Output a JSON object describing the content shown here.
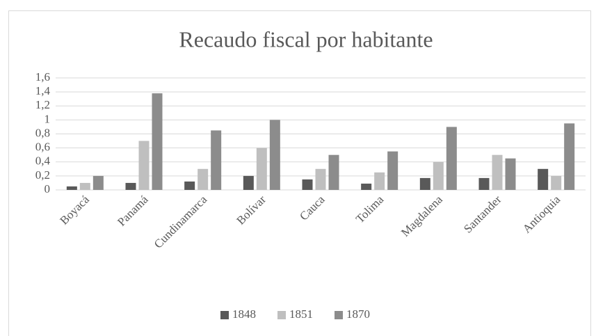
{
  "chart_data": {
    "type": "bar",
    "title": "Recaudo fiscal por habitante",
    "categories": [
      "Boyacá",
      "Panamá",
      "Cundinamarca",
      "Bolívar",
      "Cauca",
      "Tolima",
      "Magdalena",
      "Santander",
      "Antioquia"
    ],
    "series": [
      {
        "name": "1848",
        "color": "#595959",
        "values": [
          0.05,
          0.1,
          0.12,
          0.2,
          0.15,
          0.09,
          0.17,
          0.17,
          0.3
        ]
      },
      {
        "name": "1851",
        "color": "#bfbfbf",
        "values": [
          0.1,
          0.7,
          0.3,
          0.6,
          0.3,
          0.25,
          0.4,
          0.5,
          0.2
        ]
      },
      {
        "name": "1870",
        "color": "#8c8c8c",
        "values": [
          0.2,
          1.38,
          0.85,
          1.0,
          0.5,
          0.55,
          0.9,
          0.45,
          0.95
        ]
      }
    ],
    "ylim": [
      0,
      1.6
    ],
    "yticks": [
      0,
      {
        "value": 0.2,
        "label": "0,2"
      },
      {
        "value": 0.4,
        "label": "0,4"
      },
      {
        "value": 0.6,
        "label": "0,6"
      },
      {
        "value": 0.8,
        "label": "0,8"
      },
      1,
      {
        "value": 1.2,
        "label": "1,2"
      },
      {
        "value": 1.4,
        "label": "1,4"
      },
      {
        "value": 1.6,
        "label": "1,6"
      }
    ],
    "grid": true,
    "legend": "bottom"
  }
}
